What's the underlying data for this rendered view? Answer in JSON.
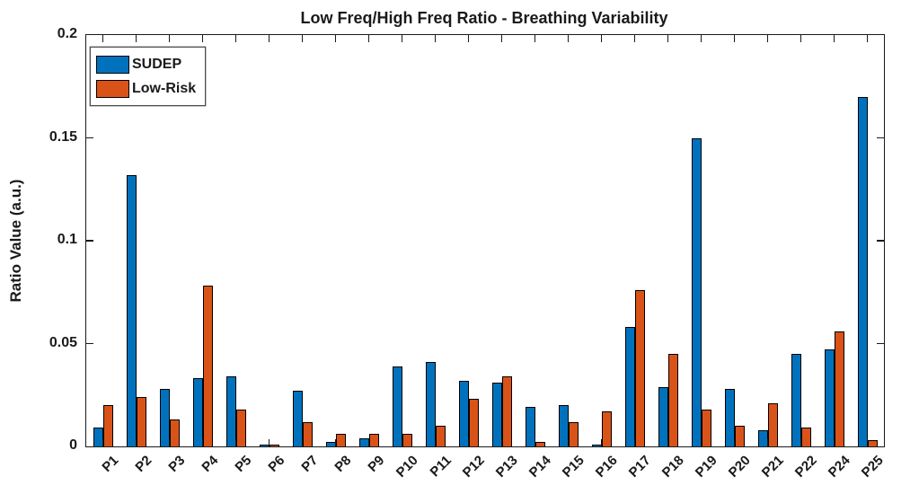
{
  "chart_data": {
    "type": "bar",
    "title": "Low Freq/High Freq Ratio - Breathing Variability",
    "xlabel": "",
    "ylabel": "Ratio Value (a.u.)",
    "categories": [
      "P1",
      "P2",
      "P3",
      "P4",
      "P5",
      "P6",
      "P7",
      "P8",
      "P9",
      "P10",
      "P11",
      "P12",
      "P13",
      "P14",
      "P15",
      "P16",
      "P17",
      "P18",
      "P19",
      "P20",
      "P21",
      "P22",
      "P24",
      "P25"
    ],
    "series": [
      {
        "name": "SUDEP",
        "color": "#0072BD",
        "values": [
          0.009,
          0.132,
          0.028,
          0.033,
          0.034,
          0.001,
          0.027,
          0.002,
          0.004,
          0.039,
          0.041,
          0.032,
          0.031,
          0.019,
          0.02,
          0.001,
          0.058,
          0.029,
          0.15,
          0.028,
          0.008,
          0.045,
          0.047,
          0.17
        ]
      },
      {
        "name": "Low-Risk",
        "color": "#D95319",
        "values": [
          0.02,
          0.024,
          0.013,
          0.078,
          0.018,
          0.001,
          0.012,
          0.006,
          0.006,
          0.006,
          0.01,
          0.023,
          0.034,
          0.002,
          0.012,
          0.017,
          0.076,
          0.045,
          0.018,
          0.01,
          0.021,
          0.009,
          0.056,
          0.003
        ]
      }
    ],
    "ylim": [
      0,
      0.2
    ],
    "ytick_values": [
      0,
      0.05,
      0.1,
      0.15,
      0.2
    ],
    "ytick_labels": [
      "0",
      "0.05",
      "0.1",
      "0.15",
      "0.2"
    ],
    "grid": false,
    "legend_position": "top-left",
    "bar_edge_color": "#000000",
    "axis_color": "#1a1a1a"
  }
}
